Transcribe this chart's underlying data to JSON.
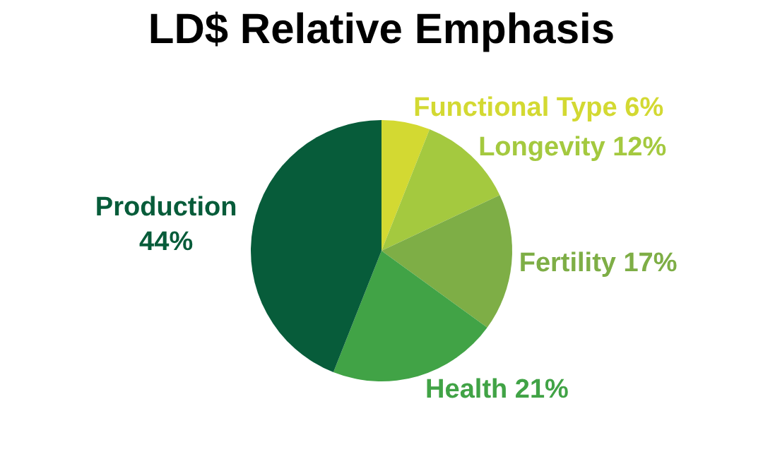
{
  "chart_data": {
    "type": "pie",
    "title": "LD$ Relative Emphasis",
    "categories": [
      "Functional Type",
      "Longevity",
      "Fertility",
      "Health",
      "Production"
    ],
    "values": [
      6,
      12,
      17,
      21,
      44
    ],
    "value_labels": [
      "6%",
      "12%",
      "17%",
      "21%",
      "44%"
    ],
    "colors": [
      "#d3d932",
      "#a4c93f",
      "#7eae46",
      "#41a346",
      "#075c3a"
    ],
    "legend": false
  }
}
